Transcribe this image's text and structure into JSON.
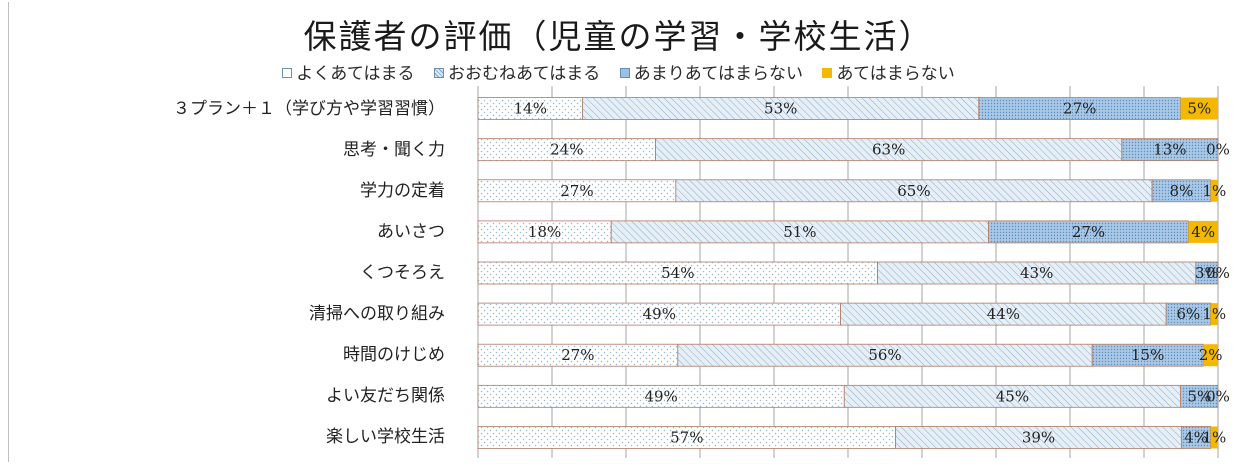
{
  "chart_data": {
    "type": "bar",
    "orientation": "horizontal",
    "stacked": true,
    "percent_stacked": true,
    "title": "保護者の評価（児童の学習・学校生活）",
    "legend_position": "top",
    "grid": true,
    "xlim": [
      0,
      100
    ],
    "categories": [
      "３プラン＋１（学び方や学習習慣）",
      "思考・聞く力",
      "学力の定着",
      "あいさつ",
      "くつそろえ",
      "清掃への取り組み",
      "時間のけじめ",
      "よい友だち関係",
      "楽しい学校生活"
    ],
    "series": [
      {
        "name": "よくあてはまる",
        "color": "#ffffff",
        "pattern": "dots",
        "values": [
          14,
          24,
          27,
          18,
          54,
          49,
          27,
          49,
          57
        ],
        "labels": [
          "14%",
          "24%",
          "27%",
          "18%",
          "54%",
          "49%",
          "27%",
          "49%",
          "57%"
        ]
      },
      {
        "name": "おおむねあてはまる",
        "color": "#dfe9f3",
        "pattern": "diagonal",
        "values": [
          53,
          63,
          65,
          51,
          43,
          44,
          56,
          45,
          39
        ],
        "labels": [
          "53%",
          "63%",
          "65%",
          "51%",
          "43%",
          "44%",
          "56%",
          "45%",
          "39%"
        ]
      },
      {
        "name": "あまりあてはまらない",
        "color": "#9cc0e0",
        "pattern": "dense-dots",
        "values": [
          27,
          13,
          8,
          27,
          3,
          6,
          15,
          5,
          4
        ],
        "labels": [
          "27%",
          "13%",
          "8%",
          "27%",
          "3%",
          "6%",
          "15%",
          "5%",
          "4%"
        ]
      },
      {
        "name": "あてはまらない",
        "color": "#f5b800",
        "pattern": "solid",
        "values": [
          5,
          0,
          1,
          4,
          0,
          1,
          2,
          0,
          1
        ],
        "labels": [
          "5%",
          "0%",
          "1%",
          "4%",
          "0%",
          "1%",
          "2%",
          "0%",
          "1%"
        ]
      }
    ]
  }
}
